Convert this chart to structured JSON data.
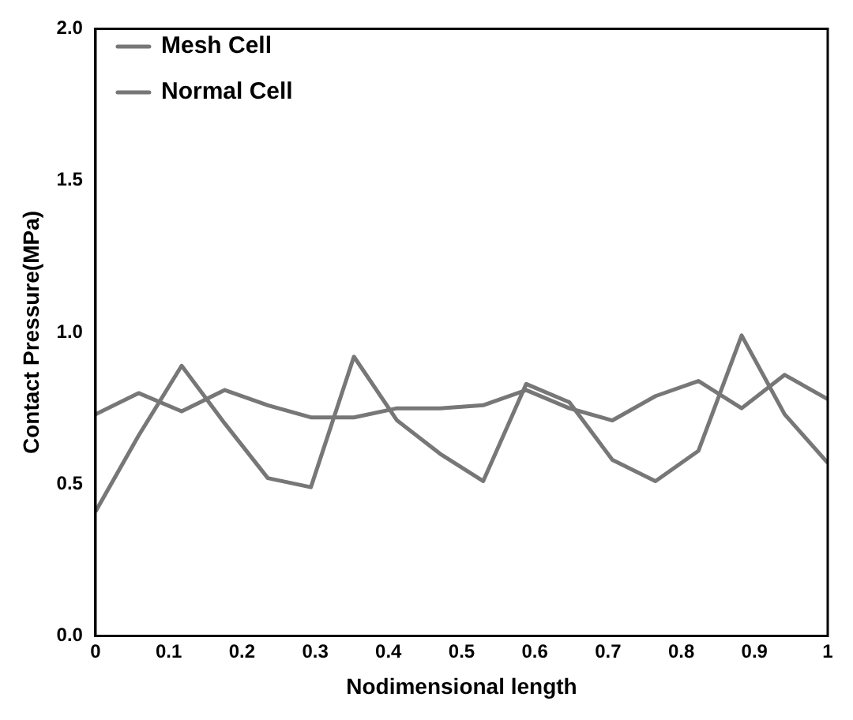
{
  "chart_data": {
    "type": "line",
    "xlabel": "Nodimensional length",
    "ylabel": "Contact Pressure(MPa)",
    "x": [
      0,
      0.0588,
      0.1176,
      0.1765,
      0.2353,
      0.2941,
      0.3529,
      0.4118,
      0.4706,
      0.5294,
      0.5882,
      0.6471,
      0.7059,
      0.7647,
      0.8235,
      0.8824,
      0.9412,
      1
    ],
    "series": [
      {
        "name": "Mesh Cell",
        "color": "#777777",
        "values": [
          0.73,
          0.8,
          0.74,
          0.81,
          0.76,
          0.72,
          0.72,
          0.75,
          0.75,
          0.76,
          0.81,
          0.75,
          0.71,
          0.79,
          0.84,
          0.75,
          0.86,
          0.78
        ]
      },
      {
        "name": "Normal Cell",
        "color": "#777777",
        "values": [
          0.41,
          0.66,
          0.89,
          0.7,
          0.52,
          0.49,
          0.92,
          0.71,
          0.6,
          0.51,
          0.83,
          0.77,
          0.58,
          0.51,
          0.61,
          0.99,
          0.73,
          0.57
        ]
      }
    ],
    "xlim": [
      0,
      1
    ],
    "xticks": [
      0,
      0.1,
      0.2,
      0.3,
      0.4,
      0.5,
      0.6,
      0.7,
      0.8,
      0.9,
      1
    ],
    "ylim": [
      0,
      2
    ],
    "yticks": [
      {
        "value": 0,
        "label": "0.0"
      },
      {
        "value": 0.5,
        "label": "0.5"
      },
      {
        "value": 1,
        "label": "1.0"
      },
      {
        "value": 1.5,
        "label": "1.5"
      },
      {
        "value": 2,
        "label": "2.0"
      }
    ],
    "legend": "top left",
    "grid": false,
    "marker": "none",
    "line_style": "solid"
  }
}
